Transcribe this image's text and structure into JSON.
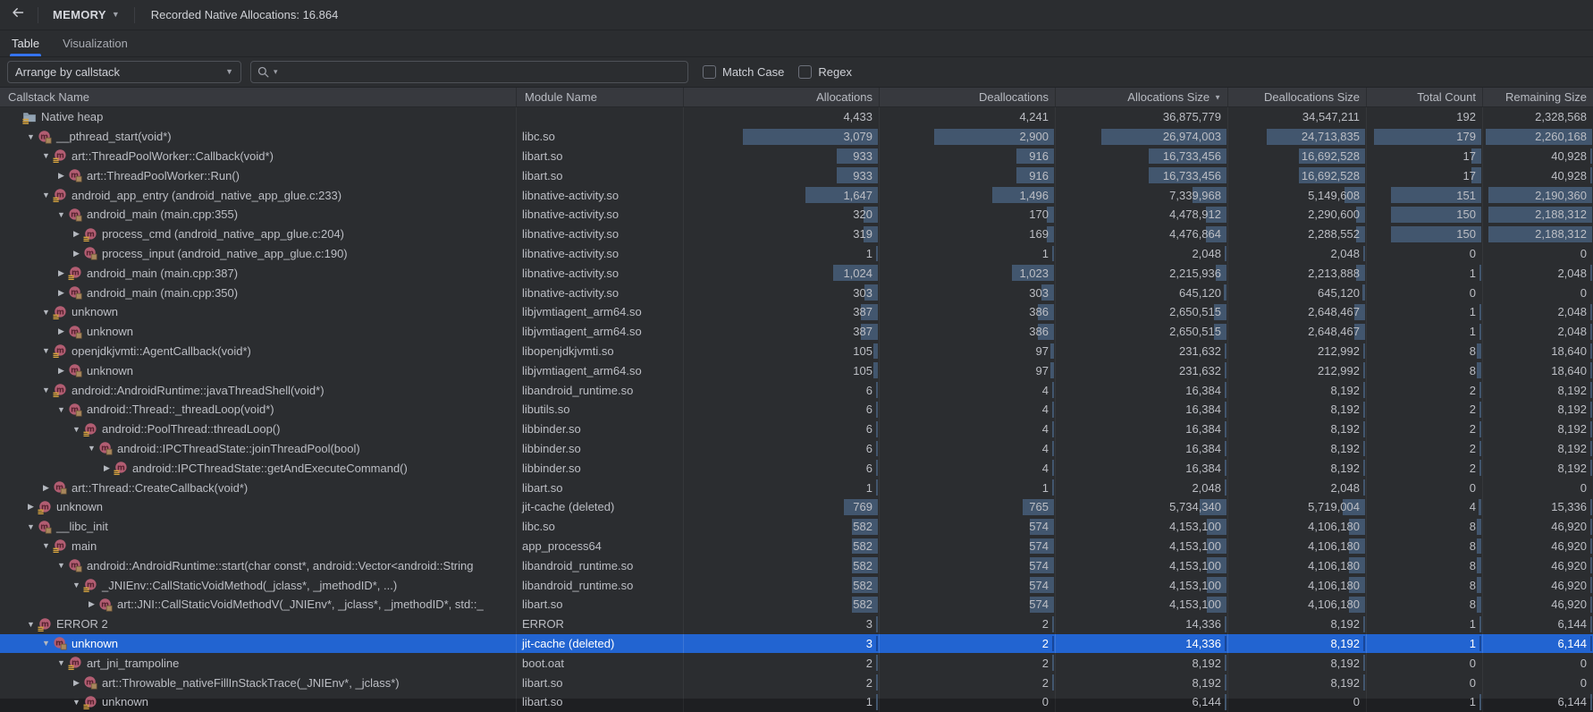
{
  "colors": {
    "accent": "#3574F0",
    "selection": "#2264D1",
    "bar": "#42566E",
    "header_bg": "#37393E",
    "bg": "#2B2D30",
    "text": "#BCBEC4"
  },
  "topbar": {
    "menu_label": "MEMORY",
    "title": "Recorded Native Allocations: 16.864"
  },
  "tabs": [
    {
      "label": "Table",
      "active": true
    },
    {
      "label": "Visualization",
      "active": false
    }
  ],
  "toolbar": {
    "arrange_dropdown": {
      "value": "Arrange by callstack"
    },
    "search": {
      "value": "",
      "placeholder": ""
    },
    "checkboxes": [
      {
        "label": "Match Case",
        "checked": false
      },
      {
        "label": "Regex",
        "checked": false
      }
    ]
  },
  "table": {
    "columns": [
      {
        "label": "Callstack Name",
        "align": "left"
      },
      {
        "label": "Module Name",
        "align": "left"
      },
      {
        "label": "Allocations",
        "align": "right"
      },
      {
        "label": "Deallocations",
        "align": "right"
      },
      {
        "label": "Allocations Size",
        "align": "right",
        "sort": "desc"
      },
      {
        "label": "Deallocations Size",
        "align": "right"
      },
      {
        "label": "Total Count",
        "align": "right"
      },
      {
        "label": "Remaining Size",
        "align": "right"
      }
    ],
    "rows": [
      {
        "depth": 0,
        "arrow": null,
        "icon": "folder",
        "name": "Native heap",
        "module": "",
        "values": [
          "4,433",
          "4,241",
          "36,875,779",
          "34,547,211",
          "192",
          "2,328,568"
        ],
        "root": true
      },
      {
        "depth": 1,
        "arrow": "v",
        "icon": "mbox",
        "name": "__pthread_start(void*)",
        "module": "libc.so",
        "values": [
          "3,079",
          "2,900",
          "26,974,003",
          "24,713,835",
          "179",
          "2,260,168"
        ]
      },
      {
        "depth": 2,
        "arrow": "v",
        "icon": "mlines",
        "name": "art::ThreadPoolWorker::Callback(void*)",
        "module": "libart.so",
        "values": [
          "933",
          "916",
          "16,733,456",
          "16,692,528",
          "17",
          "40,928"
        ]
      },
      {
        "depth": 3,
        "arrow": ">",
        "icon": "mbox",
        "name": "art::ThreadPoolWorker::Run()",
        "module": "libart.so",
        "values": [
          "933",
          "916",
          "16,733,456",
          "16,692,528",
          "17",
          "40,928"
        ]
      },
      {
        "depth": 2,
        "arrow": "v",
        "icon": "mlines",
        "name": "android_app_entry (android_native_app_glue.c:233)",
        "module": "libnative-activity.so",
        "values": [
          "1,647",
          "1,496",
          "7,339,968",
          "5,149,608",
          "151",
          "2,190,360"
        ]
      },
      {
        "depth": 3,
        "arrow": "v",
        "icon": "mbox",
        "name": "android_main (main.cpp:355)",
        "module": "libnative-activity.so",
        "values": [
          "320",
          "170",
          "4,478,912",
          "2,290,600",
          "150",
          "2,188,312"
        ]
      },
      {
        "depth": 4,
        "arrow": ">",
        "icon": "mlines",
        "name": "process_cmd (android_native_app_glue.c:204)",
        "module": "libnative-activity.so",
        "values": [
          "319",
          "169",
          "4,476,864",
          "2,288,552",
          "150",
          "2,188,312"
        ]
      },
      {
        "depth": 4,
        "arrow": ">",
        "icon": "mbox",
        "name": "process_input (android_native_app_glue.c:190)",
        "module": "libnative-activity.so",
        "values": [
          "1",
          "1",
          "2,048",
          "2,048",
          "0",
          "0"
        ]
      },
      {
        "depth": 3,
        "arrow": ">",
        "icon": "mlines",
        "name": "android_main (main.cpp:387)",
        "module": "libnative-activity.so",
        "values": [
          "1,024",
          "1,023",
          "2,215,936",
          "2,213,888",
          "1",
          "2,048"
        ]
      },
      {
        "depth": 3,
        "arrow": ">",
        "icon": "mbox",
        "name": "android_main (main.cpp:350)",
        "module": "libnative-activity.so",
        "values": [
          "303",
          "303",
          "645,120",
          "645,120",
          "0",
          "0"
        ]
      },
      {
        "depth": 2,
        "arrow": "v",
        "icon": "mlines",
        "name": "unknown",
        "module": "libjvmtiagent_arm64.so",
        "values": [
          "387",
          "386",
          "2,650,515",
          "2,648,467",
          "1",
          "2,048"
        ]
      },
      {
        "depth": 3,
        "arrow": ">",
        "icon": "mbox",
        "name": "unknown",
        "module": "libjvmtiagent_arm64.so",
        "values": [
          "387",
          "386",
          "2,650,515",
          "2,648,467",
          "1",
          "2,048"
        ]
      },
      {
        "depth": 2,
        "arrow": "v",
        "icon": "mlines",
        "name": "openjdkjvmti::AgentCallback(void*)",
        "module": "libopenjdkjvmti.so",
        "values": [
          "105",
          "97",
          "231,632",
          "212,992",
          "8",
          "18,640"
        ]
      },
      {
        "depth": 3,
        "arrow": ">",
        "icon": "mbox",
        "name": "unknown",
        "module": "libjvmtiagent_arm64.so",
        "values": [
          "105",
          "97",
          "231,632",
          "212,992",
          "8",
          "18,640"
        ]
      },
      {
        "depth": 2,
        "arrow": "v",
        "icon": "mlines",
        "name": "android::AndroidRuntime::javaThreadShell(void*)",
        "module": "libandroid_runtime.so",
        "values": [
          "6",
          "4",
          "16,384",
          "8,192",
          "2",
          "8,192"
        ]
      },
      {
        "depth": 3,
        "arrow": "v",
        "icon": "mbox",
        "name": "android::Thread::_threadLoop(void*)",
        "module": "libutils.so",
        "values": [
          "6",
          "4",
          "16,384",
          "8,192",
          "2",
          "8,192"
        ]
      },
      {
        "depth": 4,
        "arrow": "v",
        "icon": "mlines",
        "name": "android::PoolThread::threadLoop()",
        "module": "libbinder.so",
        "values": [
          "6",
          "4",
          "16,384",
          "8,192",
          "2",
          "8,192"
        ]
      },
      {
        "depth": 5,
        "arrow": "v",
        "icon": "mbox",
        "name": "android::IPCThreadState::joinThreadPool(bool)",
        "module": "libbinder.so",
        "values": [
          "6",
          "4",
          "16,384",
          "8,192",
          "2",
          "8,192"
        ]
      },
      {
        "depth": 6,
        "arrow": ">",
        "icon": "mlines",
        "name": "android::IPCThreadState::getAndExecuteCommand()",
        "module": "libbinder.so",
        "values": [
          "6",
          "4",
          "16,384",
          "8,192",
          "2",
          "8,192"
        ]
      },
      {
        "depth": 2,
        "arrow": ">",
        "icon": "mbox",
        "name": "art::Thread::CreateCallback(void*)",
        "module": "libart.so",
        "values": [
          "1",
          "1",
          "2,048",
          "2,048",
          "0",
          "0"
        ]
      },
      {
        "depth": 1,
        "arrow": ">",
        "icon": "mlines",
        "name": "unknown",
        "module": "jit-cache (deleted)",
        "values": [
          "769",
          "765",
          "5,734,340",
          "5,719,004",
          "4",
          "15,336"
        ]
      },
      {
        "depth": 1,
        "arrow": "v",
        "icon": "mbox",
        "name": "__libc_init",
        "module": "libc.so",
        "values": [
          "582",
          "574",
          "4,153,100",
          "4,106,180",
          "8",
          "46,920"
        ]
      },
      {
        "depth": 2,
        "arrow": "v",
        "icon": "mlines",
        "name": "main",
        "module": "app_process64",
        "values": [
          "582",
          "574",
          "4,153,100",
          "4,106,180",
          "8",
          "46,920"
        ]
      },
      {
        "depth": 3,
        "arrow": "v",
        "icon": "mbox",
        "name": "android::AndroidRuntime::start(char const*, android::Vector<android::String",
        "module": "libandroid_runtime.so",
        "values": [
          "582",
          "574",
          "4,153,100",
          "4,106,180",
          "8",
          "46,920"
        ]
      },
      {
        "depth": 4,
        "arrow": "v",
        "icon": "mlines",
        "name": "_JNIEnv::CallStaticVoidMethod(_jclass*, _jmethodID*, ...)",
        "module": "libandroid_runtime.so",
        "values": [
          "582",
          "574",
          "4,153,100",
          "4,106,180",
          "8",
          "46,920"
        ]
      },
      {
        "depth": 5,
        "arrow": ">",
        "icon": "mbox",
        "name": "art::JNI::CallStaticVoidMethodV(_JNIEnv*, _jclass*, _jmethodID*, std::_",
        "module": "libart.so",
        "values": [
          "582",
          "574",
          "4,153,100",
          "4,106,180",
          "8",
          "46,920"
        ]
      },
      {
        "depth": 1,
        "arrow": "v",
        "icon": "mlines",
        "name": "ERROR 2",
        "module": "ERROR",
        "values": [
          "3",
          "2",
          "14,336",
          "8,192",
          "1",
          "6,144"
        ]
      },
      {
        "depth": 2,
        "arrow": "v",
        "icon": "mbox",
        "name": "unknown",
        "module": "jit-cache (deleted)",
        "values": [
          "3",
          "2",
          "14,336",
          "8,192",
          "1",
          "6,144"
        ],
        "selected": true
      },
      {
        "depth": 3,
        "arrow": "v",
        "icon": "mlines",
        "name": "art_jni_trampoline",
        "module": "boot.oat",
        "values": [
          "2",
          "2",
          "8,192",
          "8,192",
          "0",
          "0"
        ]
      },
      {
        "depth": 4,
        "arrow": ">",
        "icon": "mbox",
        "name": "art::Throwable_nativeFillInStackTrace(_JNIEnv*, _jclass*)",
        "module": "libart.so",
        "values": [
          "2",
          "2",
          "8,192",
          "8,192",
          "0",
          "0"
        ]
      },
      {
        "depth": 4,
        "arrow": "v",
        "icon": "mlines",
        "name": "unknown",
        "module": "libart.so",
        "values": [
          "1",
          "0",
          "6,144",
          "0",
          "1",
          "6,144"
        ],
        "partial": true
      }
    ]
  }
}
